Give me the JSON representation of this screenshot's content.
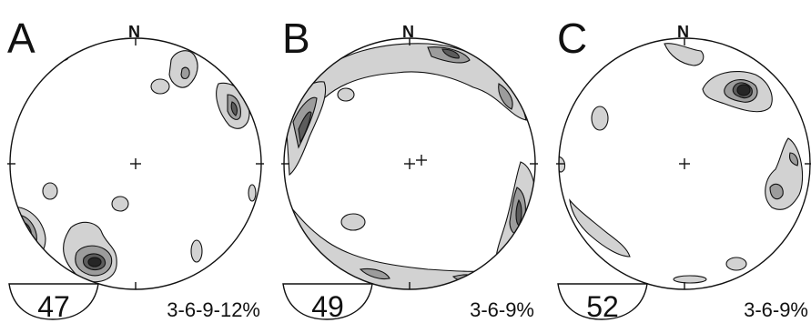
{
  "panels": [
    {
      "letter": "A",
      "north": "N",
      "count": "47",
      "levels": "3-6-9-12%"
    },
    {
      "letter": "B",
      "north": "N",
      "count": "49",
      "levels": "3-6-9%"
    },
    {
      "letter": "C",
      "north": "N",
      "count": "52",
      "levels": "3-6-9%"
    }
  ],
  "colors": {
    "level1": "#d2d2d2",
    "level2": "#9c9c9c",
    "level3": "#5c5c5c",
    "level4": "#262626"
  }
}
